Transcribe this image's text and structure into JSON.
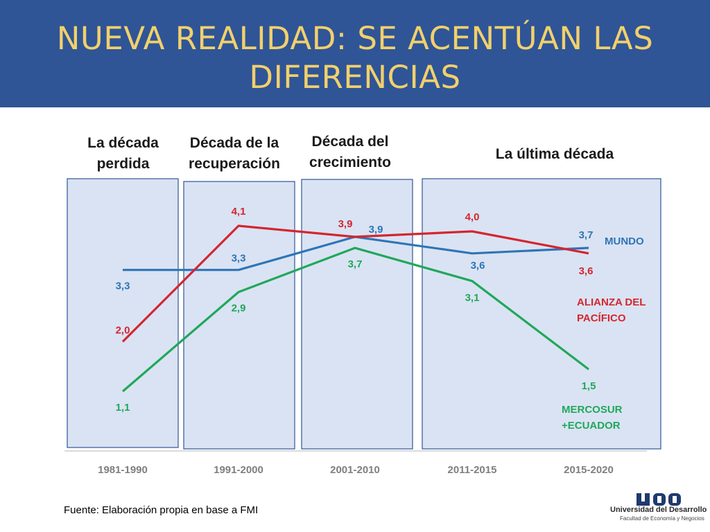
{
  "slide": {
    "title": "NUEVA REALIDAD: SE ACENTÚAN LAS DIFERENCIAS",
    "source": "Fuente: Elaboración propia en base a FMI",
    "logo": {
      "text": "Universidad del Desarrollo",
      "subtext": "Facultad de Economía y Negocios",
      "mark": "UDD"
    }
  },
  "decades": [
    {
      "label": "La década perdida"
    },
    {
      "label": "Década de la recuperación"
    },
    {
      "label": "Década del crecimiento"
    },
    {
      "label": "La última década"
    }
  ],
  "chart_data": {
    "type": "line",
    "categories": [
      "1981-1990",
      "1991-2000",
      "2001-2010",
      "2011-2015",
      "2015-2020"
    ],
    "ylim": [
      1.1,
      4.1
    ],
    "series": [
      {
        "name": "MUNDO",
        "color": "#2E75B6",
        "values": [
          3.3,
          3.3,
          3.9,
          3.6,
          3.7
        ],
        "value_labels": [
          "3,3",
          "3,3",
          "3,9",
          "3,6",
          "3,7"
        ]
      },
      {
        "name": "ALIANZA DEL PACÍFICO",
        "color": "#D3262F",
        "values": [
          2.0,
          4.1,
          3.9,
          4.0,
          3.6
        ],
        "value_labels": [
          "2,0",
          "4,1",
          "3,9",
          "4,0",
          "3,6"
        ]
      },
      {
        "name": "MERCOSUR +ECUADOR",
        "color": "#1FA85A",
        "values": [
          1.1,
          2.9,
          3.7,
          3.1,
          1.5
        ],
        "value_labels": [
          "1,1",
          "2,9",
          "3,7",
          "3,1",
          "1,5"
        ]
      }
    ]
  }
}
